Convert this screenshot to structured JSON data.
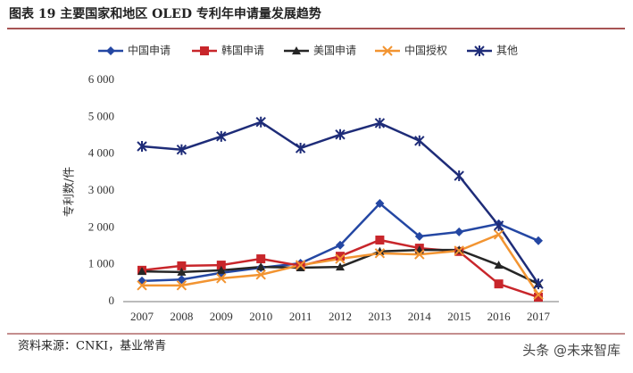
{
  "chart_data": {
    "type": "line",
    "title": "图表 19 主要国家和地区 OLED 专利年申请量发展趋势",
    "y_label": "专利数/件",
    "source": "资料来源：CNKI，基业常青",
    "watermark": "头条 @未来智库",
    "categories": [
      "2007",
      "2008",
      "2009",
      "2010",
      "2011",
      "2012",
      "2013",
      "2014",
      "2015",
      "2016",
      "2017"
    ],
    "ylim": [
      0,
      6000
    ],
    "yticks": [
      0,
      {
        "value": 1000,
        "label": "1 000"
      },
      {
        "value": 2000,
        "label": "2 000"
      },
      {
        "value": 3000,
        "label": "3 000"
      },
      {
        "value": 4000,
        "label": "4 000"
      },
      {
        "value": 5000,
        "label": "5 000"
      },
      {
        "value": 6000,
        "label": "6 000"
      }
    ],
    "series": [
      {
        "name": "中国申请",
        "color": "#2447a3",
        "marker": "diamond",
        "values": [
          560,
          600,
          780,
          920,
          1040,
          1530,
          2660,
          1770,
          1890,
          2110,
          1650
        ]
      },
      {
        "name": "韩国申请",
        "color": "#c8262b",
        "marker": "square",
        "values": [
          850,
          970,
          990,
          1160,
          970,
          1230,
          1670,
          1450,
          1360,
          480,
          120
        ]
      },
      {
        "name": "美国申请",
        "color": "#262626",
        "marker": "triangle",
        "values": [
          820,
          800,
          850,
          940,
          920,
          940,
          1360,
          1400,
          1400,
          990,
          480
        ]
      },
      {
        "name": "中国授权",
        "color": "#f29431",
        "marker": "x",
        "values": [
          440,
          440,
          630,
          730,
          990,
          1160,
          1310,
          1280,
          1380,
          1820,
          190
        ]
      },
      {
        "name": "其他",
        "color": "#1e2c78",
        "marker": "star",
        "values": [
          4210,
          4120,
          4480,
          4870,
          4160,
          4530,
          4840,
          4360,
          3410,
          2060,
          480
        ]
      }
    ]
  }
}
